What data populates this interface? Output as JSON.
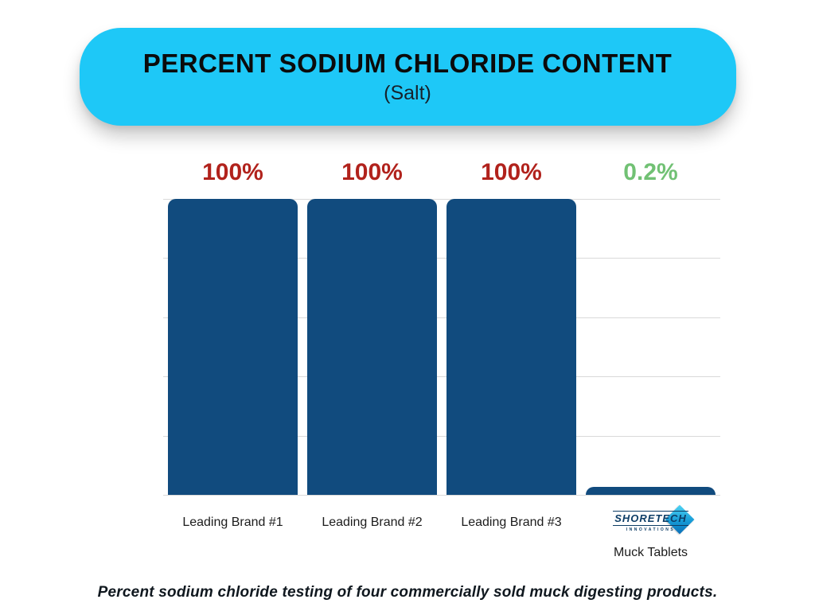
{
  "banner": {
    "title": "PERCENT SODIUM CHLORIDE CONTENT",
    "subtitle": "(Salt)",
    "bg_color": "#1ec8f7"
  },
  "chart_data": {
    "type": "bar",
    "title": "PERCENT SODIUM CHLORIDE CONTENT (Salt)",
    "categories": [
      "Leading Brand #1",
      "Leading Brand #2",
      "Leading Brand #3",
      "Muck Tablets"
    ],
    "values": [
      100,
      100,
      100,
      0.2
    ],
    "value_labels": [
      "100%",
      "100%",
      "100%",
      "0.2%"
    ],
    "value_label_colors": [
      "#b1221c",
      "#b1221c",
      "#b1221c",
      "#71c174"
    ],
    "bar_color": "#114b7e",
    "xlabel": "",
    "ylabel": "",
    "ylim": [
      0,
      100
    ],
    "grid": true,
    "gridline_count": 6,
    "legend": "none"
  },
  "logo": {
    "name": "SHORETECH",
    "sub": "INNOVATIONS"
  },
  "caption": "Percent sodium chloride testing of four commercially sold muck digesting products."
}
